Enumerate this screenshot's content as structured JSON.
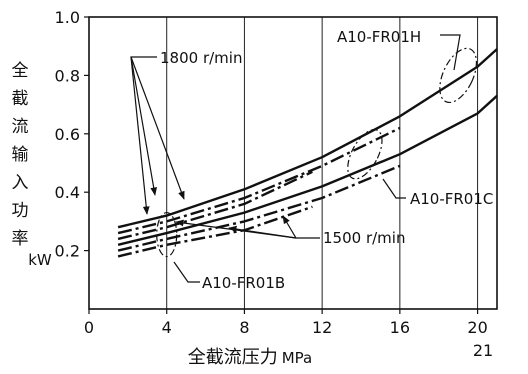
{
  "chart_data": {
    "type": "line",
    "xlabel": "全截流压力",
    "xunit": "MPa",
    "ylabel_chars": [
      "全",
      "截",
      "流",
      "输",
      "入",
      "功",
      "率"
    ],
    "yunit": "kW",
    "xlim": [
      0,
      21
    ],
    "ylim": [
      0,
      1.0
    ],
    "x_ticks": [
      0,
      4,
      8,
      12,
      16,
      20
    ],
    "x_tick_labels": [
      "0",
      "4",
      "8",
      "12",
      "16",
      "20"
    ],
    "x_extra_label": "21",
    "y_ticks": [
      0.2,
      0.4,
      0.6,
      0.8,
      1.0
    ],
    "y_tick_labels": [
      "0.2",
      "0.4",
      "0.6",
      "0.8",
      "1.0"
    ],
    "grid": "vertical at x ticks",
    "speed_labels": [
      "1800 r/min",
      "1500 r/min"
    ],
    "model_labels": [
      "A10-FR01H",
      "A10-FR01C",
      "A10-FR01B"
    ],
    "series": [
      {
        "style": "solid",
        "speed": "1800 r/min",
        "x": [
          1.5,
          4,
          8,
          12,
          16,
          20,
          21
        ],
        "y": [
          0.28,
          0.32,
          0.41,
          0.52,
          0.66,
          0.83,
          0.89
        ]
      },
      {
        "style": "dashdot",
        "speed": "1800 r/min",
        "x": [
          1.5,
          4,
          8,
          12,
          16
        ],
        "y": [
          0.26,
          0.3,
          0.38,
          0.49,
          0.62
        ]
      },
      {
        "style": "dashdot",
        "speed": "1800 r/min",
        "x": [
          1.5,
          4,
          8,
          11.5
        ],
        "y": [
          0.24,
          0.28,
          0.36,
          0.47
        ]
      },
      {
        "style": "solid",
        "speed": "1500 r/min",
        "x": [
          1.5,
          4,
          8,
          12,
          16,
          20,
          21
        ],
        "y": [
          0.22,
          0.26,
          0.33,
          0.42,
          0.53,
          0.67,
          0.73
        ]
      },
      {
        "style": "dashdot",
        "speed": "1500 r/min",
        "x": [
          1.5,
          4,
          8,
          12,
          16
        ],
        "y": [
          0.2,
          0.24,
          0.3,
          0.38,
          0.49
        ]
      },
      {
        "style": "dashdot",
        "speed": "1500 r/min",
        "x": [
          1.5,
          4,
          8,
          11.5
        ],
        "y": [
          0.18,
          0.22,
          0.27,
          0.35
        ]
      }
    ],
    "model_ellipses": [
      {
        "model": "A10-FR01H",
        "cx": 19,
        "cy": 0.8
      },
      {
        "model": "A10-FR01C",
        "cx": 14.2,
        "cy": 0.53
      },
      {
        "model": "A10-FR01B",
        "cx": 4,
        "cy": 0.255
      }
    ]
  }
}
